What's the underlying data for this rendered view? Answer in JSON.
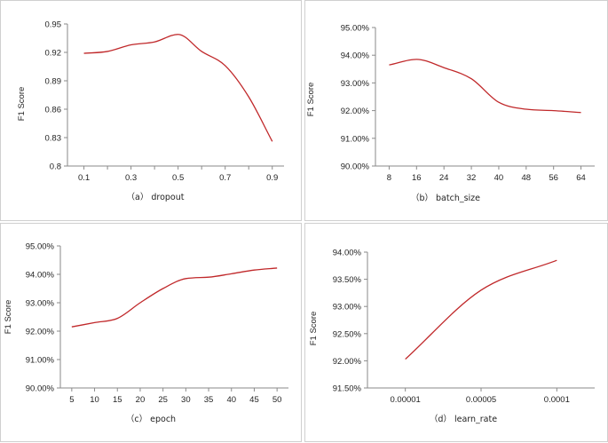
{
  "chart_data": [
    {
      "id": "a",
      "type": "line",
      "caption": "（a） dropout",
      "ylabel": "F1 Score",
      "xlabel": "dropout",
      "x_tick_labels": [
        "0.1",
        "0.3",
        "0.5",
        "0.7",
        "0.9"
      ],
      "x_ticks": [
        0.1,
        0.3,
        0.5,
        0.7,
        0.9
      ],
      "xlim": [
        0.03,
        0.95
      ],
      "y_tick_labels": [
        "0.8",
        "0.83",
        "0.86",
        "0.89",
        "0.92",
        "0.95"
      ],
      "y_ticks": [
        0.8,
        0.83,
        0.86,
        0.89,
        0.92,
        0.95
      ],
      "ylim": [
        0.8,
        0.95
      ],
      "x": [
        0.1,
        0.2,
        0.3,
        0.4,
        0.5,
        0.6,
        0.7,
        0.8,
        0.9
      ],
      "values": [
        0.919,
        0.921,
        0.928,
        0.931,
        0.939,
        0.921,
        0.906,
        0.873,
        0.826
      ]
    },
    {
      "id": "b",
      "type": "line",
      "caption": "（b） batch_size",
      "ylabel": "F1 Score",
      "xlabel": "batch_size",
      "x_tick_labels": [
        "8",
        "16",
        "24",
        "32",
        "40",
        "48",
        "56",
        "64"
      ],
      "x_ticks": [
        8,
        16,
        24,
        32,
        40,
        48,
        56,
        64
      ],
      "xlim": [
        4,
        68
      ],
      "y_tick_labels": [
        "90.00%",
        "91.00%",
        "92.00%",
        "93.00%",
        "94.00%",
        "95.00%"
      ],
      "y_ticks": [
        90,
        91,
        92,
        93,
        94,
        95
      ],
      "ylim": [
        90,
        95
      ],
      "x": [
        8,
        16,
        24,
        32,
        40,
        48,
        56,
        64
      ],
      "values": [
        93.65,
        93.85,
        93.55,
        93.15,
        92.3,
        92.05,
        92.0,
        91.93
      ]
    },
    {
      "id": "c",
      "type": "line",
      "caption": "（c） epoch",
      "ylabel": "F1 Score",
      "xlabel": "epoch",
      "x_tick_labels": [
        "5",
        "10",
        "15",
        "20",
        "25",
        "30",
        "35",
        "40",
        "45",
        "50"
      ],
      "x_ticks": [
        5,
        10,
        15,
        20,
        25,
        30,
        35,
        40,
        45,
        50
      ],
      "xlim": [
        2.5,
        52.5
      ],
      "y_tick_labels": [
        "90.00%",
        "91.00%",
        "92.00%",
        "93.00%",
        "94.00%",
        "95.00%"
      ],
      "y_ticks": [
        90,
        91,
        92,
        93,
        94,
        95
      ],
      "ylim": [
        90,
        95
      ],
      "x": [
        5,
        10,
        15,
        20,
        25,
        30,
        35,
        40,
        45,
        50
      ],
      "values": [
        92.15,
        92.3,
        92.45,
        93.0,
        93.5,
        93.85,
        93.9,
        94.02,
        94.15,
        94.22
      ]
    },
    {
      "id": "d",
      "type": "line",
      "caption": "（d） learn_rate",
      "ylabel": "F1 Score",
      "xlabel": "learn_rate",
      "x_tick_labels": [
        "0.00001",
        "0.00005",
        "0.0001"
      ],
      "x_ticks": [
        0,
        1,
        2
      ],
      "xlim": [
        -0.5,
        2.5
      ],
      "y_tick_labels": [
        "91.50%",
        "92.00%",
        "92.50%",
        "93.00%",
        "93.50%",
        "94.00%"
      ],
      "y_ticks": [
        91.5,
        92,
        92.5,
        93,
        93.5,
        94
      ],
      "ylim": [
        91.5,
        94
      ],
      "x": [
        0,
        1,
        2
      ],
      "values": [
        92.03,
        93.3,
        93.85
      ]
    }
  ]
}
